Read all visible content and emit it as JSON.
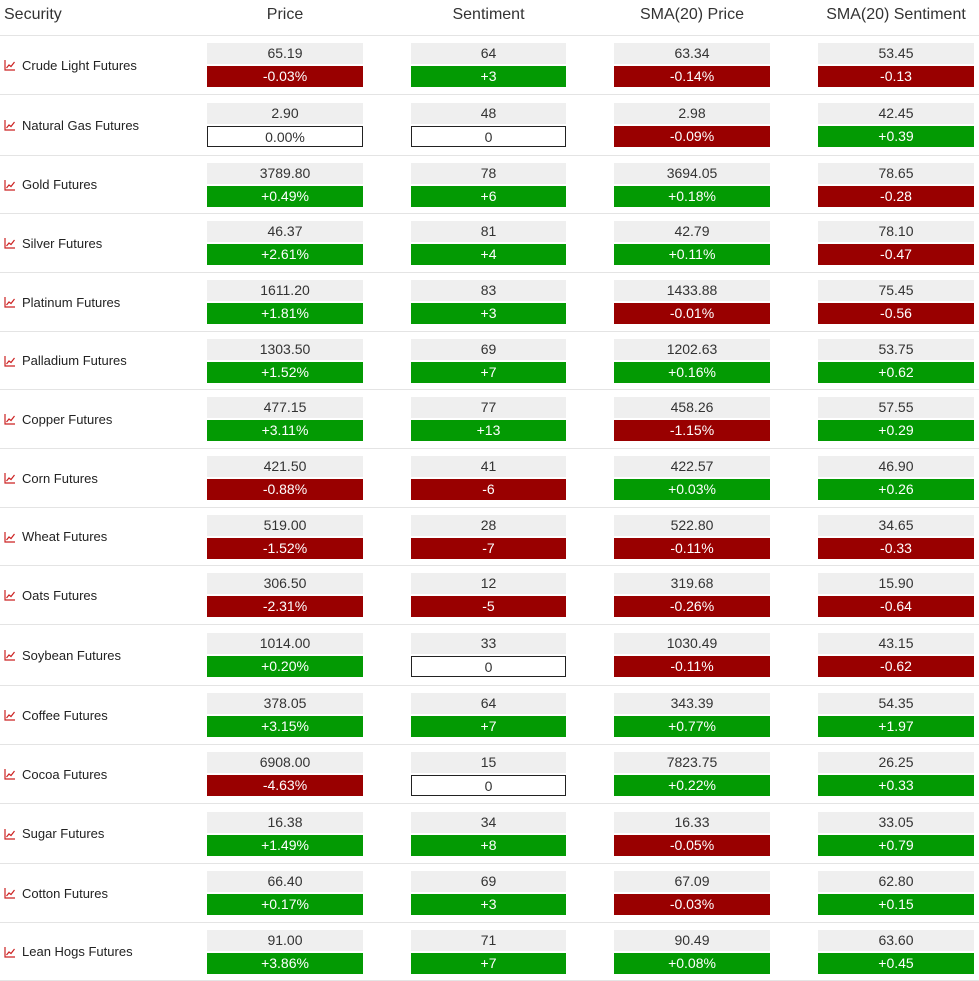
{
  "header": {
    "security": "Security",
    "price": "Price",
    "sentiment": "Sentiment",
    "sma_price": "SMA(20) Price",
    "sma_sentiment": "SMA(20) Sentiment"
  },
  "rows": [
    {
      "name": "Crude Light Futures",
      "price": "65.19",
      "price_chg": "-0.03%",
      "sent": "64",
      "sent_chg": "+3",
      "sma_price": "63.34",
      "sma_price_chg": "-0.14%",
      "sma_sent": "53.45",
      "sma_sent_chg": "-0.13"
    },
    {
      "name": "Natural Gas Futures",
      "price": "2.90",
      "price_chg": "0.00%",
      "sent": "48",
      "sent_chg": "0",
      "sma_price": "2.98",
      "sma_price_chg": "-0.09%",
      "sma_sent": "42.45",
      "sma_sent_chg": "+0.39"
    },
    {
      "name": "Gold Futures",
      "price": "3789.80",
      "price_chg": "+0.49%",
      "sent": "78",
      "sent_chg": "+6",
      "sma_price": "3694.05",
      "sma_price_chg": "+0.18%",
      "sma_sent": "78.65",
      "sma_sent_chg": "-0.28"
    },
    {
      "name": "Silver Futures",
      "price": "46.37",
      "price_chg": "+2.61%",
      "sent": "81",
      "sent_chg": "+4",
      "sma_price": "42.79",
      "sma_price_chg": "+0.11%",
      "sma_sent": "78.10",
      "sma_sent_chg": "-0.47"
    },
    {
      "name": "Platinum Futures",
      "price": "1611.20",
      "price_chg": "+1.81%",
      "sent": "83",
      "sent_chg": "+3",
      "sma_price": "1433.88",
      "sma_price_chg": "-0.01%",
      "sma_sent": "75.45",
      "sma_sent_chg": "-0.56"
    },
    {
      "name": "Palladium Futures",
      "price": "1303.50",
      "price_chg": "+1.52%",
      "sent": "69",
      "sent_chg": "+7",
      "sma_price": "1202.63",
      "sma_price_chg": "+0.16%",
      "sma_sent": "53.75",
      "sma_sent_chg": "+0.62"
    },
    {
      "name": "Copper Futures",
      "price": "477.15",
      "price_chg": "+3.11%",
      "sent": "77",
      "sent_chg": "+13",
      "sma_price": "458.26",
      "sma_price_chg": "-1.15%",
      "sma_sent": "57.55",
      "sma_sent_chg": "+0.29"
    },
    {
      "name": "Corn Futures",
      "price": "421.50",
      "price_chg": "-0.88%",
      "sent": "41",
      "sent_chg": "-6",
      "sma_price": "422.57",
      "sma_price_chg": "+0.03%",
      "sma_sent": "46.90",
      "sma_sent_chg": "+0.26"
    },
    {
      "name": "Wheat Futures",
      "price": "519.00",
      "price_chg": "-1.52%",
      "sent": "28",
      "sent_chg": "-7",
      "sma_price": "522.80",
      "sma_price_chg": "-0.11%",
      "sma_sent": "34.65",
      "sma_sent_chg": "-0.33"
    },
    {
      "name": "Oats Futures",
      "price": "306.50",
      "price_chg": "-2.31%",
      "sent": "12",
      "sent_chg": "-5",
      "sma_price": "319.68",
      "sma_price_chg": "-0.26%",
      "sma_sent": "15.90",
      "sma_sent_chg": "-0.64"
    },
    {
      "name": "Soybean Futures",
      "price": "1014.00",
      "price_chg": "+0.20%",
      "sent": "33",
      "sent_chg": "0",
      "sma_price": "1030.49",
      "sma_price_chg": "-0.11%",
      "sma_sent": "43.15",
      "sma_sent_chg": "-0.62"
    },
    {
      "name": "Coffee Futures",
      "price": "378.05",
      "price_chg": "+3.15%",
      "sent": "64",
      "sent_chg": "+7",
      "sma_price": "343.39",
      "sma_price_chg": "+0.77%",
      "sma_sent": "54.35",
      "sma_sent_chg": "+1.97"
    },
    {
      "name": "Cocoa Futures",
      "price": "6908.00",
      "price_chg": "-4.63%",
      "sent": "15",
      "sent_chg": "0",
      "sma_price": "7823.75",
      "sma_price_chg": "+0.22%",
      "sma_sent": "26.25",
      "sma_sent_chg": "+0.33"
    },
    {
      "name": "Sugar Futures",
      "price": "16.38",
      "price_chg": "+1.49%",
      "sent": "34",
      "sent_chg": "+8",
      "sma_price": "16.33",
      "sma_price_chg": "-0.05%",
      "sma_sent": "33.05",
      "sma_sent_chg": "+0.79"
    },
    {
      "name": "Cotton Futures",
      "price": "66.40",
      "price_chg": "+0.17%",
      "sent": "69",
      "sent_chg": "+3",
      "sma_price": "67.09",
      "sma_price_chg": "-0.03%",
      "sma_sent": "62.80",
      "sma_sent_chg": "+0.15"
    },
    {
      "name": "Lean Hogs Futures",
      "price": "91.00",
      "price_chg": "+3.86%",
      "sent": "71",
      "sent_chg": "+7",
      "sma_price": "90.49",
      "sma_price_chg": "+0.08%",
      "sma_sent": "63.60",
      "sma_sent_chg": "+0.45"
    }
  ],
  "colors": {
    "positive": "#039a03",
    "negative": "#990000",
    "icon": "#cc2222"
  },
  "icons": {
    "security": "line-chart-icon"
  }
}
